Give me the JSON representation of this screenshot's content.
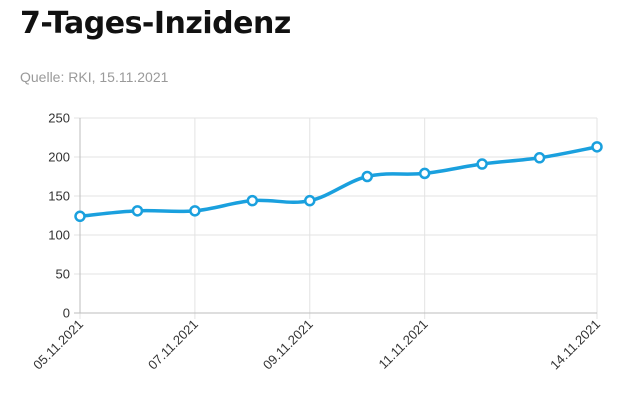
{
  "header": {
    "title": "7-Tages-Inzidenz",
    "source": "Quelle: RKI, 15.11.2021"
  },
  "chart_data": {
    "type": "line",
    "title": "7-Tages-Inzidenz",
    "xlabel": "",
    "ylabel": "",
    "x": [
      "05.11.2021",
      "06.11.2021",
      "07.11.2021",
      "08.11.2021",
      "09.11.2021",
      "10.11.2021",
      "11.11.2021",
      "12.11.2021",
      "13.11.2021",
      "14.11.2021"
    ],
    "x_tick_labels": [
      "05.11.2021",
      "07.11.2021",
      "09.11.2021",
      "11.11.2021",
      "14.11.2021"
    ],
    "series": [
      {
        "values": [
          124,
          131,
          131,
          144,
          144,
          175,
          179,
          191,
          199,
          213
        ]
      }
    ],
    "ylim": [
      0,
      250
    ],
    "yticks": [
      0,
      50,
      100,
      150,
      200,
      250
    ],
    "grid": true,
    "legend": "none",
    "line_color": "#1aa0de"
  }
}
